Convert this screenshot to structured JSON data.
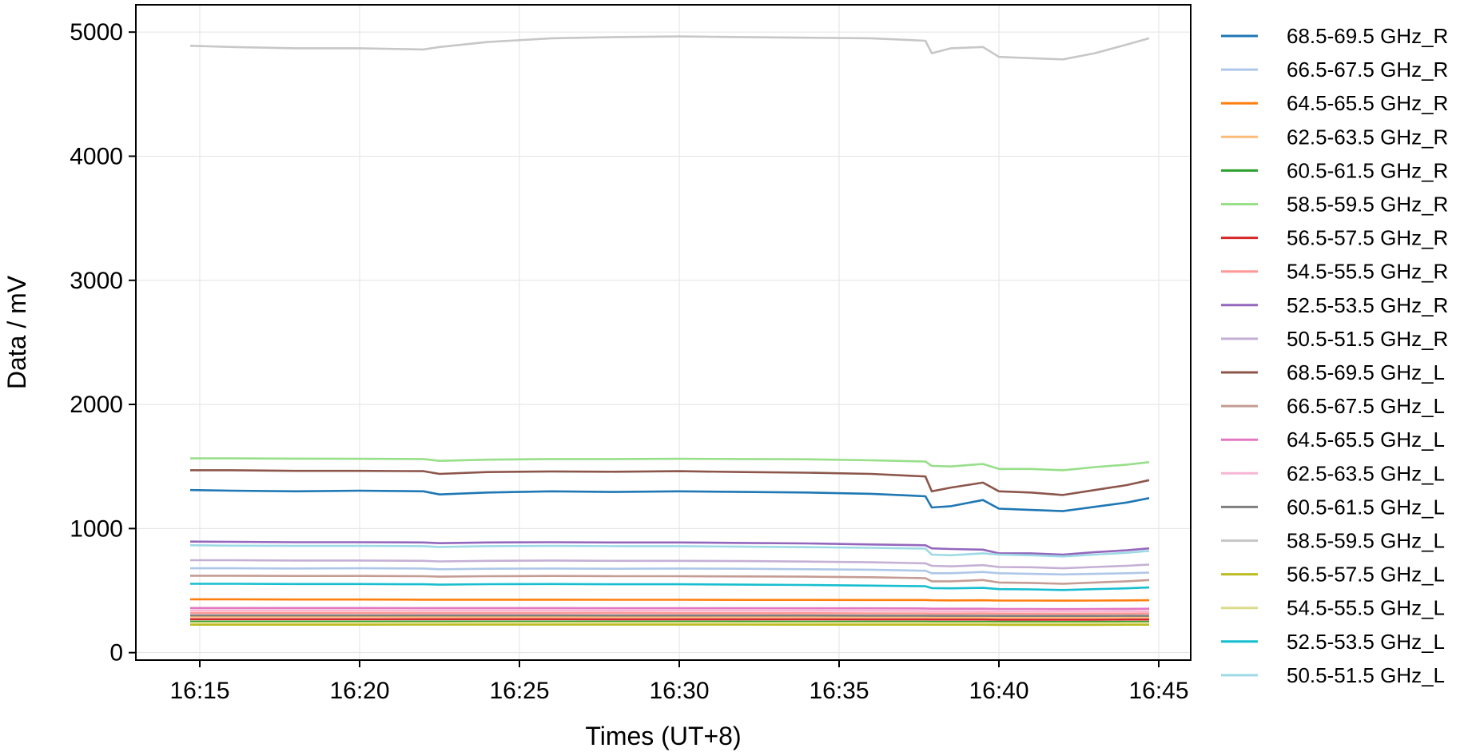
{
  "chart_data": {
    "type": "line",
    "title": "",
    "xlabel": "Times (UT+8)",
    "ylabel": "Data / mV",
    "x_unit": "minutes past 16:00 (UT+8)",
    "xlim": [
      13.0,
      46.0
    ],
    "ylim": [
      -60,
      5220
    ],
    "x_ticks": [
      15,
      20,
      25,
      30,
      35,
      40,
      45
    ],
    "x_tick_labels": [
      "16:15",
      "16:20",
      "16:25",
      "16:30",
      "16:35",
      "16:40",
      "16:45"
    ],
    "y_ticks": [
      0,
      1000,
      2000,
      3000,
      4000,
      5000
    ],
    "y_tick_labels": [
      "0",
      "1000",
      "2000",
      "3000",
      "4000",
      "5000"
    ],
    "grid": true,
    "legend_position": "outside-right",
    "x": [
      14.7,
      16,
      18,
      20,
      22,
      22.5,
      24,
      26,
      28,
      30,
      32,
      34,
      36,
      37.7,
      37.9,
      38.5,
      39.5,
      40,
      41,
      42,
      43,
      44,
      44.7
    ],
    "series": [
      {
        "name": "68.5-69.5 GHz_R",
        "color": "#1f77b4",
        "values": [
          1310,
          1305,
          1300,
          1305,
          1300,
          1275,
          1290,
          1300,
          1295,
          1300,
          1295,
          1290,
          1280,
          1260,
          1170,
          1180,
          1230,
          1160,
          1150,
          1140,
          1175,
          1210,
          1245
        ]
      },
      {
        "name": "66.5-67.5 GHz_R",
        "color": "#aec7e8",
        "values": [
          680,
          680,
          678,
          680,
          678,
          672,
          676,
          678,
          676,
          678,
          676,
          672,
          668,
          660,
          640,
          640,
          650,
          640,
          635,
          630,
          635,
          640,
          645
        ]
      },
      {
        "name": "64.5-65.5 GHz_R",
        "color": "#ff7f0e",
        "values": [
          430,
          430,
          428,
          428,
          427,
          427,
          427,
          427,
          426,
          426,
          425,
          425,
          424,
          424,
          422,
          421,
          422,
          420,
          420,
          419,
          420,
          421,
          422
        ]
      },
      {
        "name": "62.5-63.5 GHz_R",
        "color": "#ffbb78",
        "values": [
          290,
          290,
          290,
          290,
          289,
          289,
          289,
          289,
          288,
          288,
          288,
          288,
          287,
          287,
          286,
          286,
          286,
          285,
          285,
          285,
          285,
          286,
          286
        ]
      },
      {
        "name": "60.5-61.5 GHz_R",
        "color": "#2ca02c",
        "values": [
          250,
          250,
          250,
          250,
          250,
          250,
          250,
          250,
          250,
          250,
          250,
          249,
          249,
          249,
          248,
          248,
          248,
          248,
          248,
          247,
          248,
          248,
          248
        ]
      },
      {
        "name": "58.5-59.5 GHz_R",
        "color": "#98df8a",
        "values": [
          1565,
          1565,
          1563,
          1562,
          1560,
          1545,
          1555,
          1560,
          1560,
          1562,
          1560,
          1558,
          1550,
          1540,
          1505,
          1500,
          1520,
          1480,
          1480,
          1470,
          1495,
          1515,
          1535
        ]
      },
      {
        "name": "56.5-57.5 GHz_R",
        "color": "#d62728",
        "values": [
          270,
          270,
          270,
          270,
          270,
          270,
          270,
          270,
          269,
          269,
          269,
          269,
          268,
          268,
          267,
          267,
          267,
          266,
          266,
          266,
          266,
          267,
          267
        ]
      },
      {
        "name": "54.5-55.5 GHz_R",
        "color": "#ff9896",
        "values": [
          320,
          320,
          320,
          320,
          319,
          319,
          319,
          319,
          319,
          318,
          318,
          318,
          317,
          317,
          315,
          315,
          316,
          314,
          314,
          313,
          314,
          315,
          316
        ]
      },
      {
        "name": "52.5-53.5 GHz_R",
        "color": "#9467bd",
        "values": [
          895,
          893,
          890,
          890,
          888,
          882,
          888,
          890,
          888,
          888,
          884,
          880,
          872,
          865,
          840,
          835,
          830,
          800,
          800,
          790,
          810,
          825,
          840
        ]
      },
      {
        "name": "50.5-51.5 GHz_R",
        "color": "#c5b0d5",
        "values": [
          745,
          745,
          742,
          742,
          740,
          735,
          740,
          742,
          740,
          740,
          738,
          734,
          728,
          720,
          700,
          695,
          705,
          690,
          688,
          680,
          690,
          700,
          710
        ]
      },
      {
        "name": "68.5-69.5 GHz_L",
        "color": "#8c564b",
        "values": [
          1470,
          1470,
          1465,
          1465,
          1462,
          1440,
          1455,
          1460,
          1458,
          1462,
          1455,
          1450,
          1440,
          1420,
          1300,
          1330,
          1370,
          1300,
          1290,
          1270,
          1310,
          1350,
          1390
        ]
      },
      {
        "name": "66.5-67.5 GHz_L",
        "color": "#c49c94",
        "values": [
          620,
          620,
          618,
          618,
          616,
          612,
          616,
          618,
          616,
          616,
          614,
          612,
          608,
          600,
          575,
          575,
          585,
          565,
          562,
          555,
          565,
          575,
          585
        ]
      },
      {
        "name": "64.5-65.5 GHz_L",
        "color": "#e377c2",
        "values": [
          360,
          360,
          360,
          360,
          359,
          359,
          359,
          359,
          358,
          358,
          358,
          357,
          357,
          356,
          354,
          354,
          354,
          352,
          352,
          351,
          352,
          353,
          354
        ]
      },
      {
        "name": "62.5-63.5 GHz_L",
        "color": "#f7b6d2",
        "values": [
          340,
          340,
          340,
          340,
          339,
          339,
          339,
          339,
          338,
          338,
          338,
          337,
          337,
          336,
          334,
          334,
          334,
          333,
          333,
          332,
          333,
          334,
          334
        ]
      },
      {
        "name": "60.5-61.5 GHz_L",
        "color": "#7f7f7f",
        "values": [
          300,
          300,
          300,
          300,
          300,
          300,
          300,
          300,
          299,
          299,
          299,
          299,
          298,
          298,
          297,
          297,
          297,
          296,
          296,
          296,
          296,
          297,
          297
        ]
      },
      {
        "name": "58.5-59.5 GHz_L",
        "color": "#c7c7c7",
        "values": [
          4890,
          4880,
          4870,
          4870,
          4860,
          4880,
          4920,
          4950,
          4960,
          4965,
          4960,
          4955,
          4950,
          4930,
          4830,
          4870,
          4880,
          4800,
          4790,
          4780,
          4830,
          4900,
          4950
        ]
      },
      {
        "name": "56.5-57.5 GHz_L",
        "color": "#bcbd22",
        "values": [
          225,
          225,
          225,
          225,
          226,
          226,
          226,
          226,
          226,
          226,
          226,
          225,
          225,
          225,
          225,
          225,
          225,
          224,
          224,
          224,
          224,
          225,
          225
        ]
      },
      {
        "name": "54.5-55.5 GHz_L",
        "color": "#dbdb8d",
        "values": [
          240,
          240,
          240,
          240,
          240,
          240,
          241,
          241,
          241,
          241,
          240,
          240,
          240,
          240,
          239,
          239,
          239,
          238,
          238,
          238,
          238,
          239,
          239
        ]
      },
      {
        "name": "52.5-53.5 GHz_L",
        "color": "#17becf",
        "values": [
          555,
          555,
          553,
          553,
          551,
          548,
          552,
          553,
          551,
          551,
          548,
          545,
          540,
          535,
          520,
          518,
          522,
          512,
          510,
          505,
          512,
          518,
          525
        ]
      },
      {
        "name": "50.5-51.5 GHz_L",
        "color": "#9edae5",
        "values": [
          865,
          862,
          860,
          860,
          858,
          852,
          858,
          860,
          858,
          858,
          854,
          850,
          845,
          838,
          790,
          785,
          800,
          790,
          785,
          775,
          790,
          805,
          820
        ]
      }
    ]
  }
}
